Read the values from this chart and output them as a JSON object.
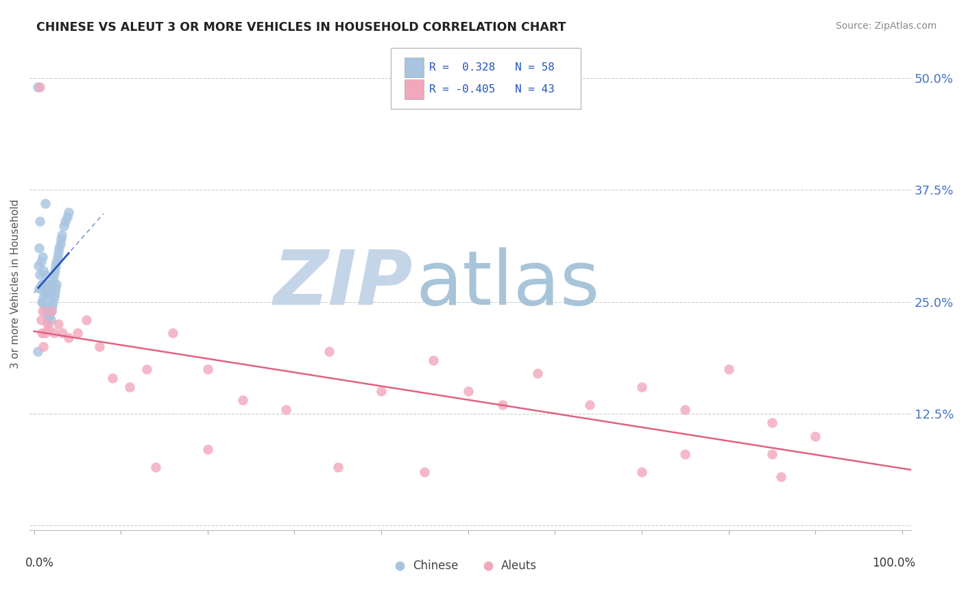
{
  "title": "CHINESE VS ALEUT 3 OR MORE VEHICLES IN HOUSEHOLD CORRELATION CHART",
  "source": "Source: ZipAtlas.com",
  "ylabel": "3 or more Vehicles in Household",
  "y_ticks": [
    0.0,
    0.125,
    0.25,
    0.375,
    0.5
  ],
  "y_tick_labels": [
    "",
    "12.5%",
    "25.0%",
    "37.5%",
    "50.0%"
  ],
  "xlim": [
    0.0,
    1.0
  ],
  "ylim": [
    0.0,
    0.54
  ],
  "chinese_r": 0.328,
  "chinese_n": 58,
  "aleut_r": -0.405,
  "aleut_n": 43,
  "chinese_color": "#a8c4e0",
  "aleut_color": "#f2a8bc",
  "chinese_line_color": "#2255bb",
  "aleut_line_color": "#e06080",
  "watermark_zip_color": "#c5d5e8",
  "watermark_atlas_color": "#a8c4d8",
  "chinese_x": [
    0.004,
    0.005,
    0.006,
    0.006,
    0.007,
    0.007,
    0.008,
    0.008,
    0.009,
    0.009,
    0.01,
    0.01,
    0.01,
    0.011,
    0.011,
    0.012,
    0.012,
    0.013,
    0.013,
    0.013,
    0.014,
    0.014,
    0.015,
    0.015,
    0.016,
    0.016,
    0.017,
    0.017,
    0.018,
    0.018,
    0.019,
    0.019,
    0.02,
    0.02,
    0.021,
    0.021,
    0.022,
    0.022,
    0.023,
    0.023,
    0.024,
    0.024,
    0.025,
    0.025,
    0.026,
    0.026,
    0.027,
    0.028,
    0.029,
    0.03,
    0.031,
    0.032,
    0.034,
    0.036,
    0.038,
    0.04,
    0.004,
    0.013
  ],
  "chinese_y": [
    0.49,
    0.29,
    0.31,
    0.265,
    0.34,
    0.28,
    0.295,
    0.265,
    0.27,
    0.25,
    0.3,
    0.27,
    0.25,
    0.285,
    0.255,
    0.27,
    0.245,
    0.28,
    0.26,
    0.24,
    0.265,
    0.24,
    0.26,
    0.23,
    0.27,
    0.245,
    0.265,
    0.235,
    0.26,
    0.235,
    0.255,
    0.23,
    0.265,
    0.24,
    0.27,
    0.245,
    0.275,
    0.25,
    0.28,
    0.255,
    0.285,
    0.26,
    0.29,
    0.265,
    0.295,
    0.27,
    0.3,
    0.305,
    0.31,
    0.315,
    0.32,
    0.325,
    0.335,
    0.34,
    0.345,
    0.35,
    0.195,
    0.36
  ],
  "aleut_x": [
    0.007,
    0.008,
    0.009,
    0.01,
    0.011,
    0.013,
    0.015,
    0.017,
    0.02,
    0.023,
    0.028,
    0.033,
    0.04,
    0.05,
    0.06,
    0.075,
    0.09,
    0.11,
    0.13,
    0.16,
    0.2,
    0.24,
    0.29,
    0.34,
    0.4,
    0.46,
    0.5,
    0.54,
    0.58,
    0.64,
    0.7,
    0.75,
    0.8,
    0.85,
    0.9,
    0.14,
    0.2,
    0.35,
    0.45,
    0.7,
    0.75,
    0.85,
    0.86
  ],
  "aleut_y": [
    0.49,
    0.23,
    0.215,
    0.24,
    0.2,
    0.215,
    0.225,
    0.22,
    0.24,
    0.215,
    0.225,
    0.215,
    0.21,
    0.215,
    0.23,
    0.2,
    0.165,
    0.155,
    0.175,
    0.215,
    0.175,
    0.14,
    0.13,
    0.195,
    0.15,
    0.185,
    0.15,
    0.135,
    0.17,
    0.135,
    0.155,
    0.13,
    0.175,
    0.115,
    0.1,
    0.065,
    0.085,
    0.065,
    0.06,
    0.06,
    0.08,
    0.08,
    0.055
  ]
}
